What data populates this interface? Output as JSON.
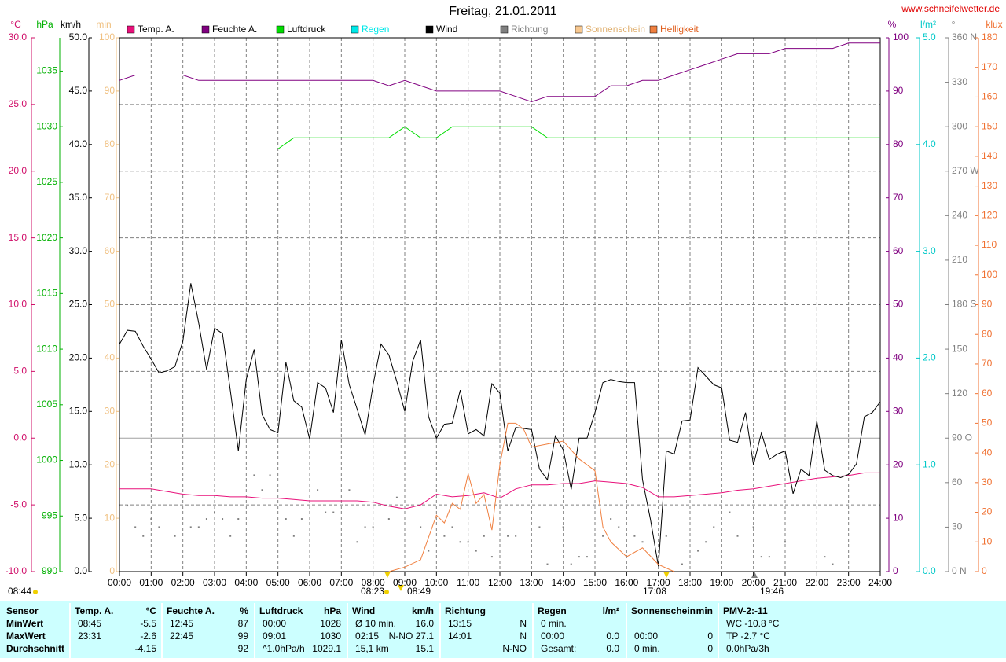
{
  "chart_data": {
    "type": "line",
    "title": "Freitag, 21.01.2011",
    "source": "www.schneifelwetter.de",
    "xlim": [
      0,
      24
    ],
    "xticks": [
      {
        "value": 0,
        "label": "00:00"
      },
      {
        "value": 1,
        "label": "01:00"
      },
      {
        "value": 2,
        "label": "02:00"
      },
      {
        "value": 3,
        "label": "03:00"
      },
      {
        "value": 4,
        "label": "04:00"
      },
      {
        "value": 5,
        "label": "05:00"
      },
      {
        "value": 6,
        "label": "06:00"
      },
      {
        "value": 7,
        "label": "07:00"
      },
      {
        "value": 8,
        "label": "08:00"
      },
      {
        "value": 9,
        "label": "09:00"
      },
      {
        "value": 10,
        "label": "10:00"
      },
      {
        "value": 11,
        "label": "11:00"
      },
      {
        "value": 12,
        "label": "12:00"
      },
      {
        "value": 13,
        "label": "13:00"
      },
      {
        "value": 14,
        "label": "14:00"
      },
      {
        "value": 15,
        "label": "15:00"
      },
      {
        "value": 16,
        "label": "16:00"
      },
      {
        "value": 17,
        "label": "17:00"
      },
      {
        "value": 18,
        "label": "18:00"
      },
      {
        "value": 19,
        "label": "19:00"
      },
      {
        "value": 20,
        "label": "20:00"
      },
      {
        "value": 21,
        "label": "21:00"
      },
      {
        "value": 22,
        "label": "22:00"
      },
      {
        "value": 23,
        "label": "23:00"
      },
      {
        "value": 24,
        "label": "24:00"
      }
    ],
    "grid": true,
    "axes": [
      {
        "unit": "°C",
        "color": "#d0106a",
        "lim": [
          -10,
          30
        ],
        "ticks": [
          {
            "value": -10,
            "label": "-10.0"
          },
          {
            "value": -5,
            "label": "-5.0"
          },
          {
            "value": 0,
            "label": "0.0"
          },
          {
            "value": 5,
            "label": "5.0"
          },
          {
            "value": 10,
            "label": "10.0"
          },
          {
            "value": 15,
            "label": "15.0"
          },
          {
            "value": 20,
            "label": "20.0"
          },
          {
            "value": 25,
            "label": "25.0"
          },
          {
            "value": 30,
            "label": "30.0"
          }
        ]
      },
      {
        "unit": "hPa",
        "color": "#00b000",
        "lim": [
          990,
          1038
        ],
        "ticks": [
          990,
          995,
          1000,
          1005,
          1010,
          1015,
          1020,
          1025,
          1030,
          1035
        ]
      },
      {
        "unit": "km/h",
        "color": "#000000",
        "lim": [
          0,
          50
        ],
        "ticks": [
          {
            "value": 0,
            "label": "0.0"
          },
          {
            "value": 5,
            "label": "5.0"
          },
          {
            "value": 10,
            "label": "10.0"
          },
          {
            "value": 15,
            "label": "15.0"
          },
          {
            "value": 20,
            "label": "20.0"
          },
          {
            "value": 25,
            "label": "25.0"
          },
          {
            "value": 30,
            "label": "30.0"
          },
          {
            "value": 35,
            "label": "35.0"
          },
          {
            "value": 40,
            "label": "40.0"
          },
          {
            "value": 45,
            "label": "45.0"
          },
          {
            "value": 50,
            "label": "50.0"
          }
        ]
      },
      {
        "unit": "min",
        "color": "#f0c080",
        "lim": [
          0,
          100
        ],
        "ticks": [
          0,
          10,
          20,
          30,
          40,
          50,
          60,
          70,
          80,
          90,
          100
        ]
      },
      {
        "unit": "%",
        "color": "#800080",
        "lim": [
          0,
          100
        ],
        "ticks": [
          0,
          10,
          20,
          30,
          40,
          50,
          60,
          70,
          80,
          90,
          100
        ]
      },
      {
        "unit": "l/m²",
        "color": "#00c8c8",
        "lim": [
          0,
          5
        ],
        "ticks": [
          {
            "value": 0,
            "label": "0.0"
          },
          {
            "value": 1,
            "label": "1.0"
          },
          {
            "value": 2,
            "label": "2.0"
          },
          {
            "value": 3,
            "label": "3.0"
          },
          {
            "value": 4,
            "label": "4.0"
          },
          {
            "value": 5,
            "label": "5.0"
          }
        ]
      },
      {
        "unit": "°",
        "color": "#808080",
        "lim": [
          0,
          360
        ],
        "ticks": [
          {
            "value": 0,
            "label": "0 N"
          },
          30,
          60,
          {
            "value": 90,
            "label": "90 O"
          },
          120,
          150,
          {
            "value": 180,
            "label": "180 S"
          },
          210,
          240,
          {
            "value": 270,
            "label": "270 W"
          },
          300,
          330,
          {
            "value": 360,
            "label": "360 N"
          }
        ]
      },
      {
        "unit": "klux",
        "color": "#f07030",
        "lim": [
          0,
          180
        ],
        "ticks": [
          0,
          10,
          20,
          30,
          40,
          50,
          60,
          70,
          80,
          90,
          100,
          110,
          120,
          130,
          140,
          150,
          160,
          170,
          180
        ]
      }
    ],
    "x": [
      0,
      0.5,
      1,
      1.5,
      2,
      2.5,
      3,
      3.5,
      4,
      4.5,
      5,
      5.5,
      6,
      6.5,
      7,
      7.5,
      8,
      8.5,
      9,
      9.5,
      10,
      10.5,
      11,
      11.5,
      12,
      12.5,
      13,
      13.5,
      14,
      14.5,
      15,
      15.5,
      16,
      16.5,
      17,
      17.5,
      18,
      18.5,
      19,
      19.5,
      20,
      20.5,
      21,
      21.5,
      22,
      22.5,
      23,
      23.5,
      24
    ],
    "series": [
      {
        "name": "Temp. A.",
        "color": "#e8107a",
        "axis": 0,
        "values": [
          -3.8,
          -3.8,
          -3.8,
          -4.0,
          -4.2,
          -4.3,
          -4.3,
          -4.4,
          -4.4,
          -4.5,
          -4.5,
          -4.6,
          -4.7,
          -4.7,
          -4.7,
          -4.7,
          -4.8,
          -5.1,
          -5.3,
          -5.0,
          -4.2,
          -4.4,
          -4.3,
          -4.1,
          -4.5,
          -3.8,
          -3.5,
          -3.5,
          -3.4,
          -3.4,
          -3.2,
          -3.3,
          -3.4,
          -3.7,
          -4.4,
          -4.4,
          -4.3,
          -4.2,
          -4.1,
          -3.9,
          -3.8,
          -3.6,
          -3.4,
          -3.2,
          -3.0,
          -2.9,
          -2.8,
          -2.6,
          -2.6
        ]
      },
      {
        "name": "Feuchte A.",
        "color": "#800080",
        "axis": 4,
        "values": [
          92,
          93,
          93,
          93,
          93,
          92,
          92,
          92,
          92,
          92,
          92,
          92,
          92,
          92,
          92,
          92,
          92,
          91,
          92,
          91,
          90,
          90,
          90,
          90,
          90,
          89,
          88,
          89,
          89,
          89,
          89,
          91,
          91,
          92,
          92,
          93,
          94,
          95,
          96,
          97,
          97,
          97,
          98,
          98,
          98,
          98,
          99,
          99,
          99
        ]
      },
      {
        "name": "Luftdruck",
        "color": "#00dd00",
        "axis": 1,
        "values": [
          1028,
          1028,
          1028,
          1028,
          1028,
          1028,
          1028,
          1028,
          1028,
          1028,
          1028,
          1029,
          1029,
          1029,
          1029,
          1029,
          1029,
          1029,
          1030,
          1029,
          1029,
          1030,
          1030,
          1030,
          1030,
          1030,
          1030,
          1029,
          1029,
          1029,
          1029,
          1029,
          1029,
          1029,
          1029,
          1029,
          1029,
          1029,
          1029,
          1029,
          1029,
          1029,
          1029,
          1029,
          1029,
          1029,
          1029,
          1029,
          1029
        ]
      },
      {
        "name": "Regen",
        "color": "#00e8e8",
        "axis": 5
      },
      {
        "name": "Wind",
        "color": "#000000",
        "axis": 2,
        "x": [
          0,
          0.25,
          0.5,
          0.75,
          1,
          1.25,
          1.5,
          1.75,
          2,
          2.25,
          2.5,
          2.75,
          3,
          3.25,
          3.5,
          3.75,
          4,
          4.25,
          4.5,
          4.75,
          5,
          5.25,
          5.5,
          5.75,
          6,
          6.25,
          6.5,
          6.75,
          7,
          7.25,
          7.5,
          7.75,
          8,
          8.25,
          8.5,
          8.75,
          9,
          9.25,
          9.5,
          9.75,
          10,
          10.25,
          10.5,
          10.75,
          11,
          11.25,
          11.5,
          11.75,
          12,
          12.25,
          12.5,
          12.75,
          13,
          13.25,
          13.5,
          13.75,
          14,
          14.25,
          14.5,
          14.75,
          15,
          15.25,
          15.5,
          15.75,
          16,
          16.25,
          16.5,
          16.75,
          17,
          17.25,
          17.5,
          17.75,
          18,
          18.25,
          18.5,
          18.75,
          19,
          19.25,
          19.5,
          19.75,
          20,
          20.25,
          20.5,
          20.75,
          21,
          21.25,
          21.5,
          21.75,
          22,
          22.25,
          22.5,
          22.75,
          23,
          23.25,
          23.5,
          23.75,
          24
        ],
        "values": [
          21.3,
          22.6,
          22.5,
          21.1,
          19.9,
          18.6,
          18.8,
          19.2,
          21.6,
          27.0,
          23.3,
          18.9,
          22.8,
          22.3,
          16.9,
          11.3,
          18.0,
          20.8,
          14.7,
          13.3,
          13.0,
          19.6,
          16.0,
          15.4,
          12.4,
          17.7,
          17.2,
          14.9,
          21.7,
          17.5,
          15.2,
          12.8,
          17.5,
          21.3,
          20.3,
          17.8,
          15.0,
          19.7,
          21.7,
          14.5,
          12.5,
          13.8,
          13.9,
          17.0,
          12.9,
          13.3,
          12.7,
          17.6,
          16.7,
          11.3,
          13.5,
          13.4,
          13.3,
          9.6,
          8.6,
          12.7,
          11.4,
          7.7,
          12.5,
          12.5,
          14.9,
          17.7,
          18.0,
          17.8,
          17.7,
          17.7,
          8.6,
          4.9,
          0.5,
          11.3,
          11.0,
          14.1,
          14.2,
          19.1,
          18.3,
          17.5,
          17.2,
          12.3,
          12.1,
          14.9,
          10.0,
          13.0,
          10.5,
          11.0,
          11.3,
          7.3,
          9.6,
          9.0,
          14.1,
          9.5,
          9.0,
          8.8,
          9.1,
          10.1,
          14.5,
          14.9,
          15.9
        ]
      },
      {
        "name": "Richtung",
        "color": "#808080",
        "axis": 6,
        "style": "dots",
        "x": [
          0.25,
          0.5,
          0.75,
          1,
          1.25,
          1.75,
          2.25,
          2.5,
          2.75,
          3,
          3.25,
          3.5,
          3.75,
          4.25,
          4.5,
          4.75,
          5.25,
          5.5,
          5.75,
          6.25,
          6.5,
          6.75,
          7.25,
          7.5,
          7.75,
          8,
          8.5,
          8.75,
          9.5,
          9.75,
          10.25,
          10.5,
          10.75,
          11,
          11.25,
          11.5,
          11.75,
          12.25,
          12.5,
          13.25,
          13.5,
          14,
          14.25,
          14.5,
          14.75,
          15.25,
          15.5,
          15.75,
          16.25,
          16.5,
          17,
          17.25,
          17.75,
          18.25,
          18.5,
          18.75,
          19.25,
          19.5,
          20,
          20.25,
          20.5,
          21,
          22.25,
          22.5
        ],
        "values": [
          44.5,
          30,
          24,
          35.5,
          30,
          24,
          30,
          30,
          35.5,
          40,
          35.5,
          24,
          35.5,
          65,
          55,
          65,
          35.5,
          24,
          35.5,
          55,
          40,
          40,
          55,
          20,
          30,
          30,
          35.5,
          50,
          30,
          14,
          24,
          30,
          20,
          20,
          14,
          24,
          10,
          24,
          24,
          30,
          5,
          30,
          5,
          10,
          10,
          24,
          35.5,
          30,
          24,
          20,
          10,
          24,
          5,
          14,
          20,
          30,
          40,
          24,
          30,
          10,
          10,
          20,
          10,
          5
        ]
      },
      {
        "name": "Sonnenschein",
        "color": "#f8c890",
        "axis": 3
      },
      {
        "name": "Helligkeit",
        "color": "#f08040",
        "axis": 7,
        "x": [
          8.5,
          9,
          9.5,
          10,
          10.25,
          10.5,
          10.75,
          11,
          11.25,
          11.5,
          11.75,
          12,
          12.25,
          12.5,
          12.75,
          13,
          13.5,
          14,
          14.5,
          15,
          15.25,
          15.5,
          16,
          16.5,
          17,
          17.5
        ],
        "values": [
          0,
          1.5,
          4,
          19,
          16.4,
          23,
          21,
          33,
          23,
          26,
          14,
          36,
          50,
          50,
          48,
          42,
          43,
          44,
          38,
          34,
          15,
          10,
          5,
          8,
          2.4,
          0
        ]
      }
    ],
    "annotations": [
      "08:44",
      "08:23",
      "08:49",
      "17:08",
      "19:46"
    ]
  },
  "stats_table": {
    "row_labels": [
      "Sensor",
      "MinWert",
      "MaxWert",
      "Durchschnitt"
    ],
    "groups": [
      {
        "header": "Temp. A.",
        "unit": "°C",
        "rows": [
          {
            "left": "08:45",
            "right": "-5.5"
          },
          {
            "left": "23:31",
            "right": "-2.6"
          },
          {
            "right": "-4.15"
          }
        ]
      },
      {
        "header": "Feuchte A.",
        "unit": "%",
        "rows": [
          {
            "left": "12:45",
            "right": "87"
          },
          {
            "left": "22:45",
            "right": "99"
          },
          {
            "right": "92"
          }
        ]
      },
      {
        "header": "Luftdruck",
        "unit": "hPa",
        "rows": [
          {
            "left": "00:00",
            "right": "1028"
          },
          {
            "left": "09:01",
            "right": "1030"
          },
          {
            "left": "^1.0hPa/h",
            "right": "1029.1"
          }
        ]
      },
      {
        "header": "Wind",
        "unit": "km/h",
        "rows": [
          {
            "left": "Ø 10 min.",
            "right": "16.0"
          },
          {
            "left": "02:15",
            "right": "N-NO 27.1"
          },
          {
            "left": "15,1 km",
            "right": "15.1"
          }
        ]
      },
      {
        "header": "Richtung",
        "rows": [
          {
            "left": "13:15",
            "right": "N"
          },
          {
            "left": "14:01",
            "right": "N"
          },
          {
            "right": "N-NO"
          }
        ]
      },
      {
        "header": "Regen",
        "unit": "l/m²",
        "rows": [
          {
            "left": "0 min."
          },
          {
            "left": "00:00",
            "right": "0.0"
          },
          {
            "left": "Gesamt:",
            "right": "0.0"
          }
        ]
      },
      {
        "header": "Sonnenschein",
        "unit": "min",
        "rows": [
          null,
          {
            "left": "00:00",
            "right": "0"
          },
          {
            "left": "0 min.",
            "right": "0"
          }
        ]
      },
      {
        "header": "PMV-2:-11",
        "rows": [
          {
            "left": "WC -10.8 °C"
          },
          {
            "left": "TP -2.7 °C"
          },
          {
            "left": "0.0hPa/3h"
          }
        ]
      }
    ]
  }
}
